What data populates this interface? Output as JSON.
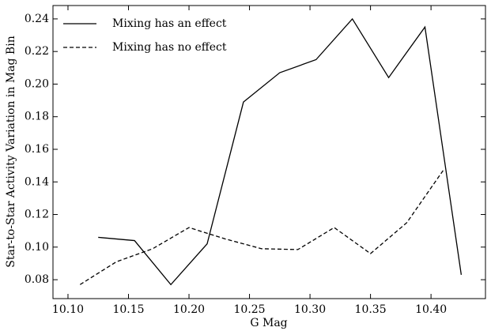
{
  "chart_data": {
    "type": "line",
    "xlabel": "G Mag",
    "ylabel": "Star-to-Star Activity Variation in Mag Bin",
    "xlim": [
      10.0876,
      10.445
    ],
    "ylim": [
      0.0684,
      0.2482
    ],
    "xticks": [
      {
        "value": 10.1,
        "label": "10.10"
      },
      {
        "value": 10.15,
        "label": "10.15"
      },
      {
        "value": 10.2,
        "label": "10.20"
      },
      {
        "value": 10.25,
        "label": "10.25"
      },
      {
        "value": 10.3,
        "label": "10.30"
      },
      {
        "value": 10.35,
        "label": "10.35"
      },
      {
        "value": 10.4,
        "label": "10.40"
      }
    ],
    "yticks": [
      {
        "value": 0.08,
        "label": "0.08"
      },
      {
        "value": 0.1,
        "label": "0.10"
      },
      {
        "value": 0.12,
        "label": "0.12"
      },
      {
        "value": 0.14,
        "label": "0.14"
      },
      {
        "value": 0.16,
        "label": "0.16"
      },
      {
        "value": 0.18,
        "label": "0.18"
      },
      {
        "value": 0.2,
        "label": "0.20"
      },
      {
        "value": 0.22,
        "label": "0.22"
      },
      {
        "value": 0.24,
        "label": "0.24"
      }
    ],
    "legend": "upper left",
    "series": [
      {
        "name": "Mixing has an effect",
        "color": "#000000",
        "dash": "solid",
        "x": [
          10.125,
          10.155,
          10.185,
          10.215,
          10.245,
          10.275,
          10.305,
          10.335,
          10.365,
          10.395,
          10.425
        ],
        "values": [
          0.106,
          0.104,
          0.077,
          0.102,
          0.189,
          0.207,
          0.215,
          0.24,
          0.204,
          0.235,
          0.083
        ]
      },
      {
        "name": "Mixing has no effect",
        "color": "#000000",
        "dash": "dashed",
        "x": [
          10.11,
          10.14,
          10.17,
          10.2,
          10.23,
          10.26,
          10.29,
          10.32,
          10.35,
          10.38,
          10.41
        ],
        "values": [
          0.077,
          0.091,
          0.099,
          0.112,
          0.105,
          0.099,
          0.0985,
          0.112,
          0.096,
          0.115,
          0.147
        ]
      }
    ]
  }
}
